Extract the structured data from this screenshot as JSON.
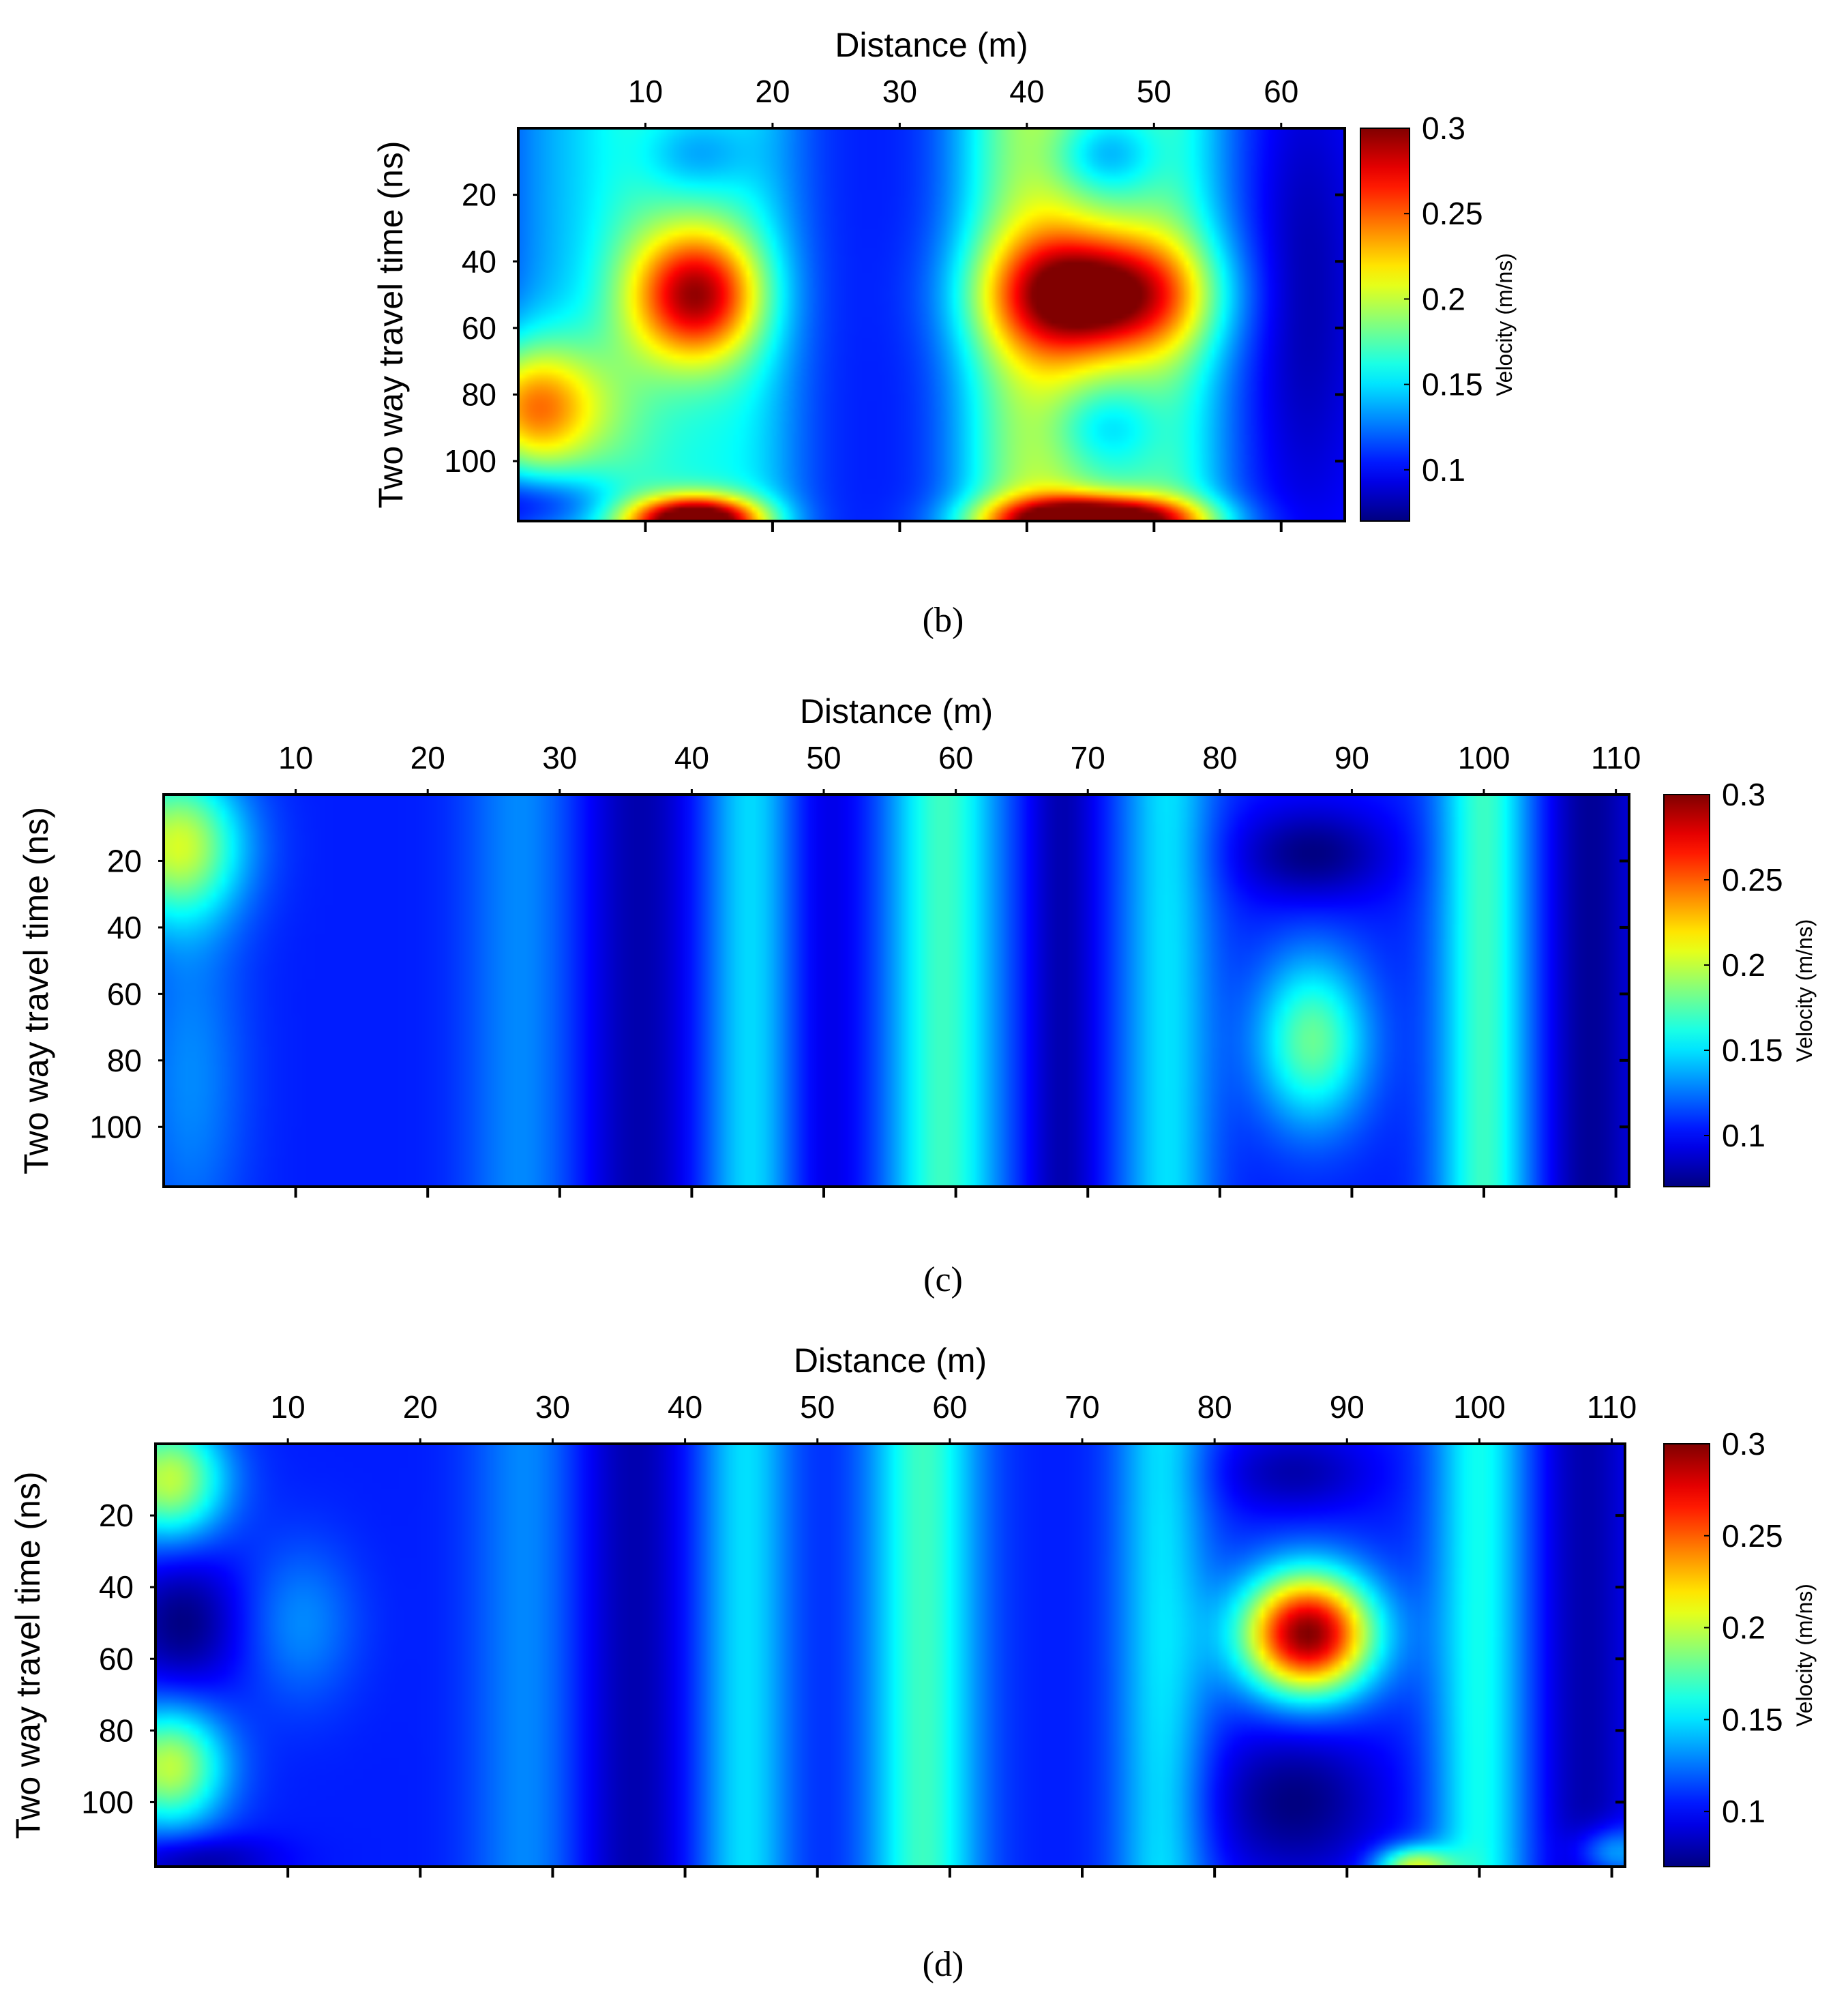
{
  "figure": {
    "panels": [
      {
        "caption": "(b)"
      },
      {
        "caption": "(c)"
      },
      {
        "caption": "(d)"
      }
    ]
  },
  "chart_data": [
    {
      "type": "heatmap",
      "panel": "(b)",
      "title": "",
      "xlabel": "Distance (m)",
      "ylabel": "Two way travel time (ns)",
      "colorbar_label": "Velocity (m/ns)",
      "x_axis_position": "top",
      "y_axis_inverted": true,
      "xlim": [
        0,
        65
      ],
      "ylim": [
        0,
        118
      ],
      "xticks": [
        10,
        20,
        30,
        40,
        50,
        60
      ],
      "yticks": [
        20,
        40,
        60,
        80,
        100
      ],
      "colorbar_ticks": [
        0.1,
        0.15,
        0.2,
        0.25,
        0.3
      ],
      "clim": [
        0.07,
        0.3
      ],
      "colormap": "jet",
      "background": 0.105,
      "features": [
        {
          "x": 2.5,
          "y": 0,
          "value": 0.13,
          "sx": 3,
          "sy": 120,
          "kind": "band"
        },
        {
          "x": 8,
          "y": 0,
          "value": 0.14,
          "sx": 3,
          "sy": 120,
          "kind": "band"
        },
        {
          "x": 13.5,
          "y": 0,
          "value": 0.15,
          "sx": 4,
          "sy": 120,
          "kind": "band"
        },
        {
          "x": 19,
          "y": 0,
          "value": 0.13,
          "sx": 3,
          "sy": 120,
          "kind": "band"
        },
        {
          "x": 37,
          "y": 0,
          "value": 0.14,
          "sx": 3,
          "sy": 120,
          "kind": "band"
        },
        {
          "x": 41,
          "y": 0,
          "value": 0.15,
          "sx": 3,
          "sy": 120,
          "kind": "band"
        },
        {
          "x": 46,
          "y": 0,
          "value": 0.16,
          "sx": 5,
          "sy": 120,
          "kind": "band"
        },
        {
          "x": 52,
          "y": 0,
          "value": 0.14,
          "sx": 3,
          "sy": 120,
          "kind": "band"
        },
        {
          "x": 14,
          "y": 50,
          "value": 0.24,
          "sx": 3.5,
          "sy": 14
        },
        {
          "x": 45.5,
          "y": 50,
          "value": 0.26,
          "sx": 5.5,
          "sy": 13
        },
        {
          "x": 1,
          "y": 84,
          "value": 0.22,
          "sx": 4,
          "sy": 14
        },
        {
          "x": 14,
          "y": 118,
          "value": 0.3,
          "sx": 3.5,
          "sy": 5
        },
        {
          "x": 45.5,
          "y": 118,
          "value": 0.3,
          "sx": 5.5,
          "sy": 5
        },
        {
          "x": 46,
          "y": 8,
          "value": 0.07,
          "sx": 3,
          "sy": 8
        },
        {
          "x": 46,
          "y": 90,
          "value": 0.08,
          "sx": 3,
          "sy": 8
        },
        {
          "x": 14,
          "y": 8,
          "value": 0.08,
          "sx": 3,
          "sy": 8
        },
        {
          "x": 2,
          "y": 112,
          "value": 0.07,
          "sx": 4,
          "sy": 6
        },
        {
          "x": 62,
          "y": 50,
          "value": 0.08,
          "sx": 3,
          "sy": 50
        }
      ]
    },
    {
      "type": "heatmap",
      "panel": "(c)",
      "title": "",
      "xlabel": "Distance (m)",
      "ylabel": "Two way travel time (ns)",
      "colorbar_label": "Velocity (m/ns)",
      "x_axis_position": "top",
      "y_axis_inverted": true,
      "xlim": [
        0,
        111
      ],
      "ylim": [
        0,
        118
      ],
      "xticks": [
        10,
        20,
        30,
        40,
        50,
        60,
        70,
        80,
        90,
        100,
        110
      ],
      "yticks": [
        20,
        40,
        60,
        80,
        100
      ],
      "colorbar_ticks": [
        0.1,
        0.15,
        0.2,
        0.25,
        0.3
      ],
      "clim": [
        0.07,
        0.3
      ],
      "colormap": "jet",
      "background": 0.105,
      "features": [
        {
          "x": 1,
          "y": 15,
          "value": 0.2,
          "sx": 3.5,
          "sy": 16
        },
        {
          "x": 2,
          "y": 85,
          "value": 0.13,
          "sx": 3,
          "sy": 40
        },
        {
          "x": 27,
          "y": 0,
          "value": 0.13,
          "sx": 3,
          "sy": 120,
          "kind": "band"
        },
        {
          "x": 36,
          "y": 0,
          "value": 0.08,
          "sx": 3,
          "sy": 120,
          "kind": "band"
        },
        {
          "x": 44.5,
          "y": 0,
          "value": 0.15,
          "sx": 2.5,
          "sy": 120,
          "kind": "band"
        },
        {
          "x": 50,
          "y": 0,
          "value": 0.09,
          "sx": 2.5,
          "sy": 120,
          "kind": "band"
        },
        {
          "x": 59,
          "y": 0,
          "value": 0.17,
          "sx": 3,
          "sy": 120,
          "kind": "band"
        },
        {
          "x": 68,
          "y": 0,
          "value": 0.08,
          "sx": 2,
          "sy": 120,
          "kind": "band"
        },
        {
          "x": 76,
          "y": 0,
          "value": 0.15,
          "sx": 2.5,
          "sy": 120,
          "kind": "band"
        },
        {
          "x": 87,
          "y": 74,
          "value": 0.18,
          "sx": 3,
          "sy": 18
        },
        {
          "x": 87,
          "y": 18,
          "value": 0.07,
          "sx": 4,
          "sy": 10
        },
        {
          "x": 100,
          "y": 0,
          "value": 0.17,
          "sx": 2.5,
          "sy": 120,
          "kind": "band"
        },
        {
          "x": 108,
          "y": 0,
          "value": 0.075,
          "sx": 2.5,
          "sy": 120,
          "kind": "band"
        }
      ]
    },
    {
      "type": "heatmap",
      "panel": "(d)",
      "title": "",
      "xlabel": "Distance (m)",
      "ylabel": "Two way travel time (ns)",
      "colorbar_label": "Velocity (m/ns)",
      "x_axis_position": "top",
      "y_axis_inverted": true,
      "xlim": [
        0,
        111
      ],
      "ylim": [
        0,
        118
      ],
      "xticks": [
        10,
        20,
        30,
        40,
        50,
        60,
        70,
        80,
        90,
        100,
        110
      ],
      "yticks": [
        20,
        40,
        60,
        80,
        100
      ],
      "colorbar_ticks": [
        0.1,
        0.15,
        0.2,
        0.25,
        0.3
      ],
      "clim": [
        0.07,
        0.3
      ],
      "colormap": "jet",
      "background": 0.105,
      "features": [
        {
          "x": 1,
          "y": 10,
          "value": 0.2,
          "sx": 3,
          "sy": 12
        },
        {
          "x": 1,
          "y": 90,
          "value": 0.2,
          "sx": 3,
          "sy": 12
        },
        {
          "x": 2,
          "y": 50,
          "value": 0.07,
          "sx": 3,
          "sy": 14
        },
        {
          "x": 3,
          "y": 116,
          "value": 0.075,
          "sx": 4,
          "sy": 5
        },
        {
          "x": 11,
          "y": 50,
          "value": 0.13,
          "sx": 3,
          "sy": 16
        },
        {
          "x": 28,
          "y": 0,
          "value": 0.13,
          "sx": 3,
          "sy": 120,
          "kind": "band"
        },
        {
          "x": 36,
          "y": 0,
          "value": 0.08,
          "sx": 3,
          "sy": 120,
          "kind": "band"
        },
        {
          "x": 44.5,
          "y": 0,
          "value": 0.15,
          "sx": 2.5,
          "sy": 120,
          "kind": "band"
        },
        {
          "x": 58,
          "y": 0,
          "value": 0.17,
          "sx": 3,
          "sy": 120,
          "kind": "band"
        },
        {
          "x": 76,
          "y": 0,
          "value": 0.15,
          "sx": 2.5,
          "sy": 120,
          "kind": "band"
        },
        {
          "x": 87,
          "y": 53,
          "value": 0.3,
          "sx": 3.5,
          "sy": 12
        },
        {
          "x": 86,
          "y": 100,
          "value": 0.07,
          "sx": 4.5,
          "sy": 15
        },
        {
          "x": 86,
          "y": 8,
          "value": 0.08,
          "sx": 4,
          "sy": 8
        },
        {
          "x": 95,
          "y": 118,
          "value": 0.2,
          "sx": 2,
          "sy": 4
        },
        {
          "x": 100,
          "y": 0,
          "value": 0.16,
          "sx": 2.5,
          "sy": 120,
          "kind": "band"
        },
        {
          "x": 108,
          "y": 0,
          "value": 0.08,
          "sx": 2.5,
          "sy": 120,
          "kind": "band"
        },
        {
          "x": 110,
          "y": 114,
          "value": 0.15,
          "sx": 2,
          "sy": 5
        }
      ]
    }
  ]
}
